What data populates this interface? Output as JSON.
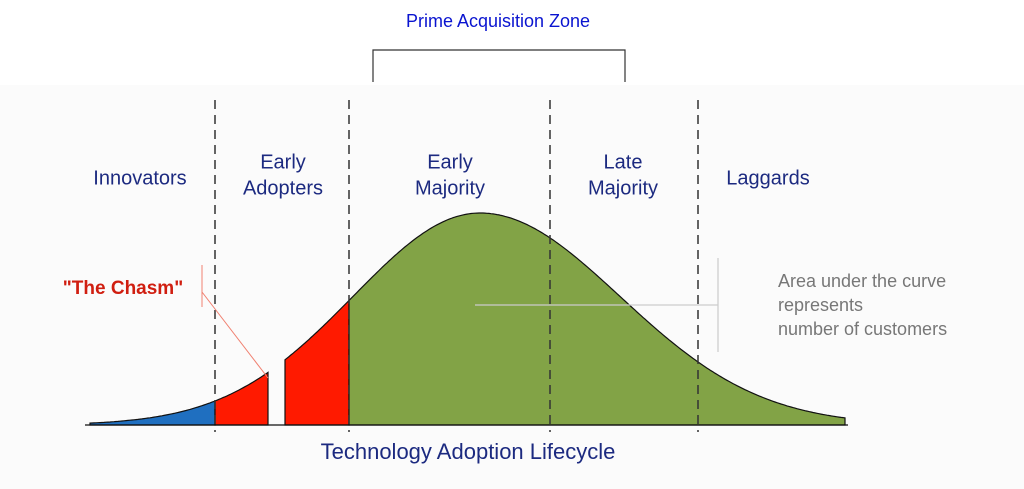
{
  "header": {
    "title": "Prime Acquisition Zone"
  },
  "segments": [
    {
      "lines": [
        "Innovators"
      ]
    },
    {
      "lines": [
        "Early",
        "Adopters"
      ]
    },
    {
      "lines": [
        "Early",
        "Majority"
      ]
    },
    {
      "lines": [
        "Late",
        "Majority"
      ]
    },
    {
      "lines": [
        "Laggards"
      ]
    }
  ],
  "chasm_label": "\"The Chasm\"",
  "annotation": {
    "lines": [
      "Area under the curve",
      "represents",
      "number of customers"
    ]
  },
  "caption": "Technology Adoption Lifecycle"
}
